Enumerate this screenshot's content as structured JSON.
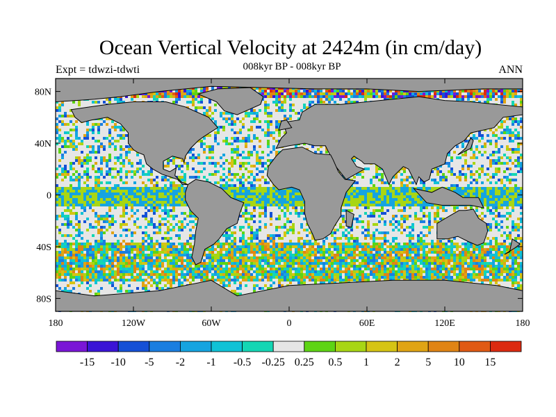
{
  "title": "Ocean Vertical Velocity at 2424m (in cm/day)",
  "subtitle": "008kyr BP - 008kyr BP",
  "experiment": "Expt = tdwzi-tdwti",
  "season": "ANN",
  "map": {
    "projection": "cylindrical-equidistant",
    "lon_range": [
      -180,
      180
    ],
    "lat_range": [
      -90,
      90
    ],
    "land_color": "#999999",
    "lat_ticks": [
      {
        "lat": 80,
        "label": "80N"
      },
      {
        "lat": 40,
        "label": "40N"
      },
      {
        "lat": 0,
        "label": "0"
      },
      {
        "lat": -40,
        "label": "40S"
      },
      {
        "lat": -80,
        "label": "80S"
      }
    ],
    "lon_ticks": [
      {
        "lon": -180,
        "label": "180"
      },
      {
        "lon": -120,
        "label": "120W"
      },
      {
        "lon": -60,
        "label": "60W"
      },
      {
        "lon": 0,
        "label": "0"
      },
      {
        "lon": 60,
        "label": "60E"
      },
      {
        "lon": 120,
        "label": "120E"
      },
      {
        "lon": 180,
        "label": "180"
      }
    ]
  },
  "colorbar": {
    "colors": [
      "#7a16d6",
      "#3a14d6",
      "#1550d6",
      "#1a7ee0",
      "#15a4e0",
      "#10c2d6",
      "#14d6b4",
      "#e6e6e6",
      "#5ed414",
      "#a8d614",
      "#d6c414",
      "#e0a414",
      "#e08414",
      "#e05a14",
      "#dc2a10"
    ],
    "labels": [
      "-15",
      "-10",
      "-5",
      "-2",
      "-1",
      "-0.5",
      "-0.25",
      "0.25",
      "0.5",
      "1",
      "2",
      "5",
      "10",
      "15"
    ]
  }
}
